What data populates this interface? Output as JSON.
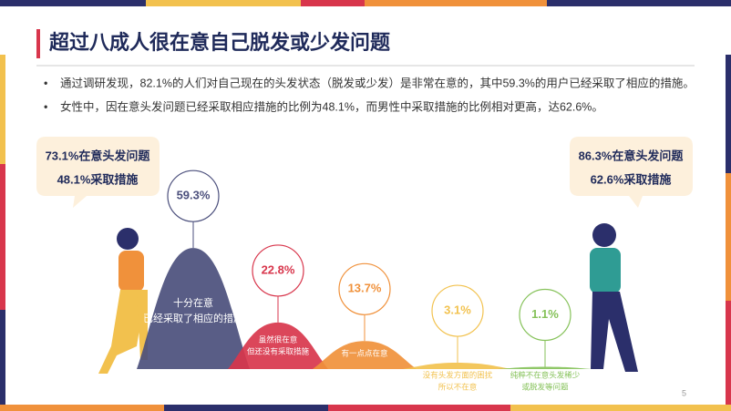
{
  "header": {
    "title": "超过八成人很在意自己脱发或少发问题"
  },
  "bullets": [
    "通过调研发现，82.1%的人们对自己现在的头发状态（脱发或少发）是非常在意的，其中59.3%的用户已经采取了相应的措施。",
    "女性中，因在意头发问题已经采取相应措施的比例为48.1%，而男性中采取措施的比例相对更高，达62.6%。"
  ],
  "callouts": [
    {
      "lines": [
        "73.1%在意头发问题",
        "48.1%采取措施"
      ]
    },
    {
      "lines": [
        "86.3%在意头发问题",
        "62.6%采取措施"
      ]
    }
  ],
  "page_number": "5",
  "chart_data": {
    "type": "mountain",
    "categories": [
      [
        "十分在意",
        "已经采取了相应的措施"
      ],
      [
        "虽然很在意",
        "但还没有采取措施"
      ],
      [
        "有一点点在意"
      ],
      [
        "没有头发方面的困扰",
        "所以不在意"
      ],
      [
        "纯粹不在意头发稀少",
        "或脱发等问题"
      ]
    ],
    "values": [
      59.3,
      22.8,
      13.7,
      3.1,
      1.1
    ],
    "value_labels": [
      "59.3%",
      "22.8%",
      "13.7%",
      "3.1%",
      "1.1%"
    ],
    "colors": [
      "#4b4f7c",
      "#d8364c",
      "#f0913b",
      "#f2c24f",
      "#86c25a"
    ]
  }
}
